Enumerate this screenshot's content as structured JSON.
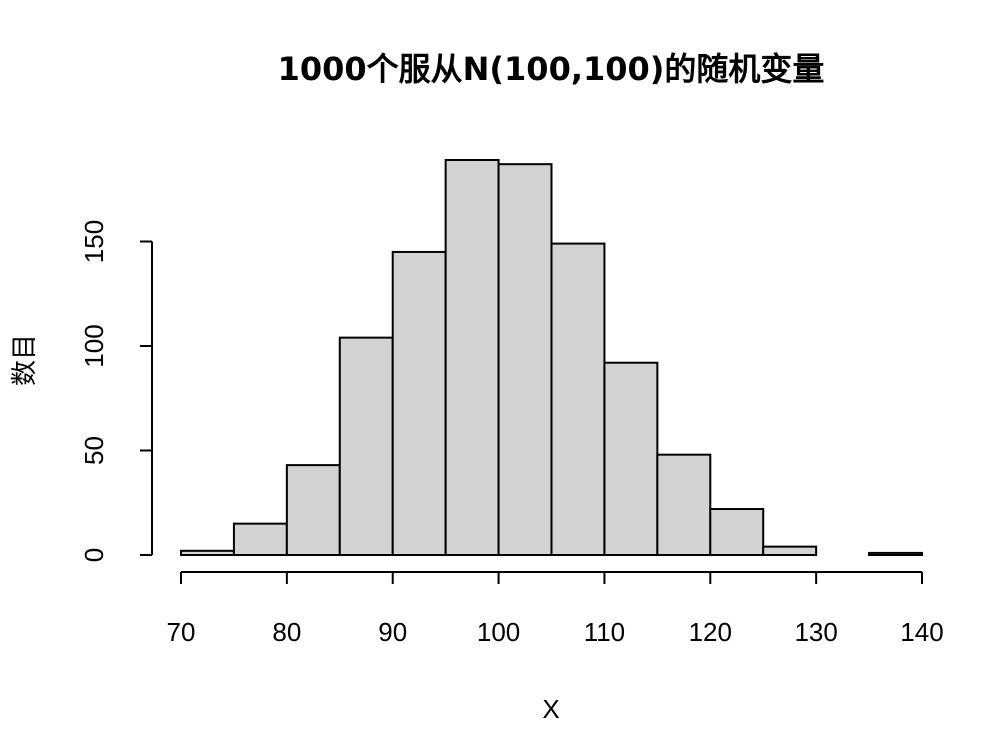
{
  "chart_data": {
    "type": "bar",
    "title": "1000个服从N(100,100)的随机变量",
    "xlabel": "X",
    "ylabel": "数目",
    "bin_edges": [
      70,
      75,
      80,
      85,
      90,
      95,
      100,
      105,
      110,
      115,
      120,
      125,
      130,
      135,
      140
    ],
    "values": [
      2,
      15,
      43,
      104,
      145,
      189,
      187,
      149,
      92,
      48,
      22,
      4,
      0,
      1
    ],
    "xlim": [
      70,
      140
    ],
    "ylim": [
      0,
      190
    ],
    "x_ticks": [
      "70",
      "80",
      "90",
      "100",
      "110",
      "120",
      "130",
      "140"
    ],
    "y_ticks": [
      "0",
      "50",
      "100",
      "150"
    ],
    "grid": false,
    "legend": "none"
  }
}
